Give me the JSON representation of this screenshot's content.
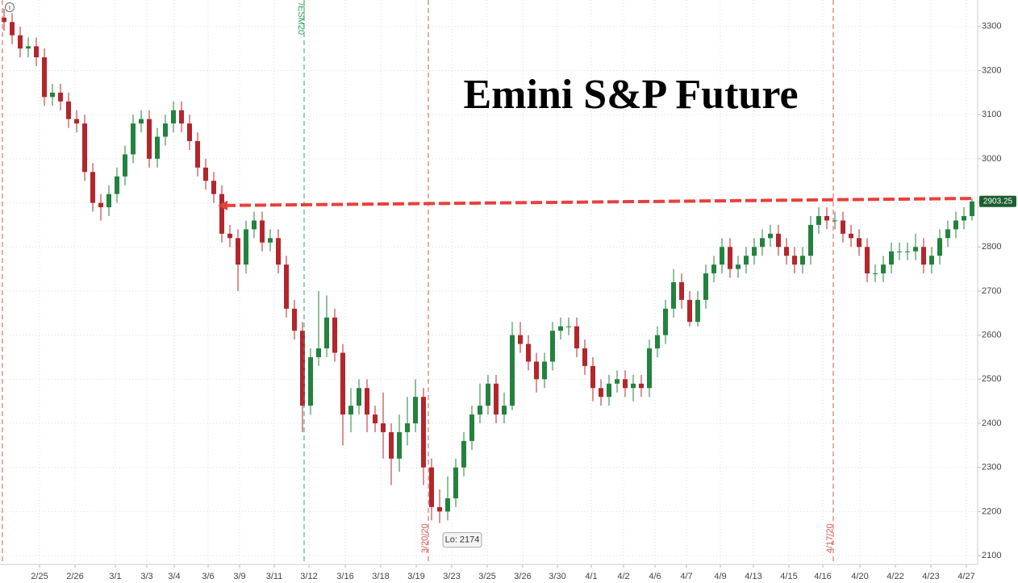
{
  "chart_data": {
    "type": "candlestick",
    "title": "Emini S&P Future",
    "open": [
      3320,
      3310,
      3280,
      3250,
      3255,
      3230,
      3140,
      3150,
      3130,
      3090,
      3080,
      2970,
      2900,
      2890,
      2920,
      2960,
      3010,
      3080,
      3090,
      3000,
      3050,
      3080,
      3110,
      3080,
      3040,
      2980,
      2950,
      2920,
      2830,
      2820,
      2760,
      2840,
      2860,
      2810,
      2820,
      2760,
      2660,
      2610,
      2440,
      2550,
      2570,
      2640,
      2560,
      2420,
      2440,
      2480,
      2420,
      2400,
      2380,
      2320,
      2380,
      2400,
      2460,
      2300,
      2210,
      2200,
      2230,
      2300,
      2360,
      2420,
      2440,
      2490,
      2420,
      2440,
      2600,
      2580,
      2540,
      2500,
      2540,
      2610,
      2620,
      2620,
      2570,
      2530,
      2480,
      2460,
      2490,
      2500,
      2480,
      2490,
      2480,
      2570,
      2600,
      2660,
      2720,
      2680,
      2630,
      2680,
      2740,
      2760,
      2800,
      2750,
      2760,
      2780,
      2800,
      2820,
      2830,
      2800,
      2780,
      2760,
      2780,
      2850,
      2870,
      2860,
      2860,
      2830,
      2820,
      2800,
      2740,
      2740,
      2760,
      2790,
      2790,
      2790,
      2800,
      2760,
      2780,
      2820,
      2840,
      2860,
      2870
    ],
    "high": [
      3340,
      3330,
      3300,
      3275,
      3275,
      3250,
      3170,
      3170,
      3150,
      3110,
      3100,
      2990,
      2920,
      2940,
      2980,
      3030,
      3100,
      3110,
      3110,
      3070,
      3100,
      3130,
      3130,
      3100,
      3060,
      3000,
      2970,
      2940,
      2850,
      2840,
      2860,
      2880,
      2880,
      2840,
      2840,
      2780,
      2680,
      2630,
      2570,
      2700,
      2690,
      2660,
      2580,
      2480,
      2500,
      2500,
      2440,
      2470,
      2400,
      2420,
      2460,
      2500,
      2480,
      2320,
      2250,
      2280,
      2320,
      2380,
      2440,
      2490,
      2510,
      2510,
      2470,
      2630,
      2630,
      2600,
      2560,
      2560,
      2630,
      2640,
      2640,
      2640,
      2590,
      2550,
      2500,
      2510,
      2520,
      2520,
      2510,
      2510,
      2590,
      2620,
      2680,
      2750,
      2740,
      2700,
      2700,
      2760,
      2780,
      2820,
      2820,
      2780,
      2800,
      2820,
      2840,
      2850,
      2850,
      2820,
      2800,
      2800,
      2870,
      2890,
      2890,
      2880,
      2880,
      2850,
      2840,
      2820,
      2760,
      2780,
      2810,
      2810,
      2810,
      2830,
      2820,
      2800,
      2840,
      2860,
      2880,
      2890,
      2910
    ],
    "low": [
      3290,
      3260,
      3230,
      3230,
      3210,
      3120,
      3120,
      3110,
      3070,
      3060,
      2950,
      2880,
      2860,
      2870,
      2900,
      2940,
      2990,
      3060,
      2980,
      2980,
      3030,
      3060,
      3060,
      3020,
      2960,
      2930,
      2900,
      2810,
      2800,
      2700,
      2740,
      2820,
      2790,
      2790,
      2740,
      2640,
      2590,
      2380,
      2420,
      2530,
      2550,
      2540,
      2350,
      2380,
      2420,
      2380,
      2380,
      2320,
      2260,
      2290,
      2350,
      2380,
      2260,
      2180,
      2174,
      2180,
      2210,
      2280,
      2340,
      2400,
      2420,
      2400,
      2400,
      2430,
      2560,
      2520,
      2470,
      2480,
      2520,
      2590,
      2600,
      2550,
      2510,
      2450,
      2440,
      2440,
      2470,
      2460,
      2450,
      2460,
      2460,
      2550,
      2580,
      2640,
      2660,
      2620,
      2620,
      2660,
      2720,
      2740,
      2730,
      2730,
      2740,
      2760,
      2780,
      2800,
      2780,
      2760,
      2740,
      2740,
      2760,
      2830,
      2840,
      2840,
      2810,
      2800,
      2780,
      2720,
      2720,
      2720,
      2740,
      2770,
      2770,
      2770,
      2740,
      2740,
      2760,
      2800,
      2820,
      2840,
      2860
    ],
    "close": [
      3310,
      3280,
      3250,
      3255,
      3230,
      3140,
      3150,
      3130,
      3090,
      3080,
      2970,
      2900,
      2890,
      2920,
      2960,
      3010,
      3080,
      3090,
      3000,
      3050,
      3080,
      3110,
      3080,
      3040,
      2980,
      2950,
      2920,
      2830,
      2820,
      2760,
      2840,
      2860,
      2810,
      2820,
      2760,
      2660,
      2610,
      2440,
      2550,
      2570,
      2640,
      2560,
      2420,
      2440,
      2480,
      2420,
      2400,
      2380,
      2320,
      2380,
      2400,
      2460,
      2300,
      2210,
      2200,
      2230,
      2300,
      2360,
      2420,
      2440,
      2490,
      2420,
      2440,
      2600,
      2580,
      2540,
      2500,
      2540,
      2610,
      2620,
      2620,
      2570,
      2530,
      2480,
      2460,
      2490,
      2500,
      2480,
      2490,
      2480,
      2570,
      2600,
      2660,
      2720,
      2680,
      2630,
      2680,
      2740,
      2760,
      2800,
      2750,
      2760,
      2780,
      2800,
      2820,
      2830,
      2800,
      2780,
      2760,
      2780,
      2850,
      2870,
      2860,
      2860,
      2830,
      2820,
      2800,
      2740,
      2740,
      2760,
      2790,
      2790,
      2790,
      2800,
      2760,
      2780,
      2820,
      2840,
      2860,
      2870,
      2903.25
    ],
    "up_color": "#23823f",
    "down_color": "#b3262c",
    "xlim": [
      -0.5,
      120.7
    ],
    "xticks": [
      {
        "value": 4.4,
        "label": "2/25"
      },
      {
        "value": 8.8,
        "label": "2/26"
      },
      {
        "value": 13.8,
        "label": "3/1"
      },
      {
        "value": 17.7,
        "label": "3/3"
      },
      {
        "value": 21.1,
        "label": "3/4"
      },
      {
        "value": 25.3,
        "label": "3/6"
      },
      {
        "value": 29.2,
        "label": "3/9"
      },
      {
        "value": 33.5,
        "label": "3/11"
      },
      {
        "value": 37.8,
        "label": "3/12"
      },
      {
        "value": 42.3,
        "label": "3/16"
      },
      {
        "value": 46.7,
        "label": "3/18"
      },
      {
        "value": 51.1,
        "label": "3/19"
      },
      {
        "value": 55.5,
        "label": "3/23"
      },
      {
        "value": 59.9,
        "label": "3/25"
      },
      {
        "value": 64.3,
        "label": "3/26"
      },
      {
        "value": 68.6,
        "label": "3/30"
      },
      {
        "value": 72.8,
        "label": "4/1"
      },
      {
        "value": 76.8,
        "label": "4/2"
      },
      {
        "value": 80.7,
        "label": "4/6"
      },
      {
        "value": 84.6,
        "label": "4/7"
      },
      {
        "value": 88.8,
        "label": "4/9"
      },
      {
        "value": 92.9,
        "label": "4/13"
      },
      {
        "value": 97.3,
        "label": "4/15"
      },
      {
        "value": 101.5,
        "label": "4/16"
      },
      {
        "value": 106.1,
        "label": "4/20"
      },
      {
        "value": 110.5,
        "label": "4/22"
      },
      {
        "value": 114.9,
        "label": "4/23"
      },
      {
        "value": 119.3,
        "label": "4/27"
      }
    ],
    "ylim": [
      2080,
      3360
    ],
    "yticks": [
      2100,
      2200,
      2300,
      2400,
      2500,
      2600,
      2700,
      2800,
      2900,
      3000,
      3100,
      3200,
      3300
    ],
    "grid": true,
    "vlines": [
      {
        "x": -0.2,
        "color": "#d9534f"
      },
      {
        "x": 37.2,
        "color": "#2aa35c",
        "label": "/ESM20"
      },
      {
        "x": 52.6,
        "color": "#d9534f",
        "label": "3/20/20"
      },
      {
        "x": 102.8,
        "color": "#d9534f",
        "label": "4/17/20"
      }
    ],
    "arrow": {
      "x": [
        26.5,
        120
      ],
      "y": [
        2894,
        2910
      ],
      "color": "#e8403c"
    },
    "low_label": {
      "x": 54,
      "y": 2174,
      "text": "Lo: 2174"
    }
  }
}
